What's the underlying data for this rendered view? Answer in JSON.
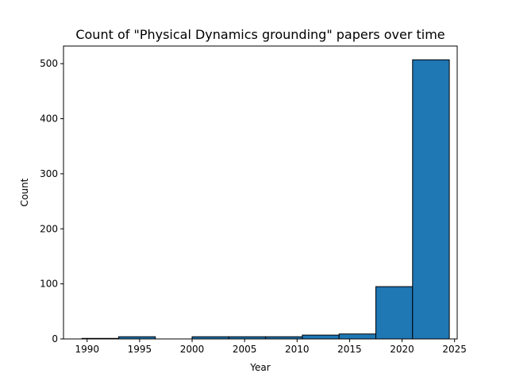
{
  "chart_data": {
    "type": "bar",
    "title": "Count of \"Physical Dynamics grounding\" papers over time",
    "xlabel": "Year",
    "ylabel": "Count",
    "xlim": [
      1987.75,
      2025.25
    ],
    "ylim": [
      0,
      532
    ],
    "xticks": [
      1990,
      1995,
      2000,
      2005,
      2010,
      2015,
      2020,
      2025
    ],
    "yticks": [
      0,
      100,
      200,
      300,
      400,
      500
    ],
    "bin_edges": [
      1989.5,
      1993.0,
      1996.5,
      2000.0,
      2003.5,
      2007.0,
      2010.5,
      2014.0,
      2017.5,
      2021.0,
      2024.5
    ],
    "values": [
      1,
      4,
      0,
      4,
      4,
      4,
      7,
      9,
      95,
      507
    ],
    "bar_color": "#1f77b4",
    "edge_color": "#000000",
    "grid": false
  }
}
